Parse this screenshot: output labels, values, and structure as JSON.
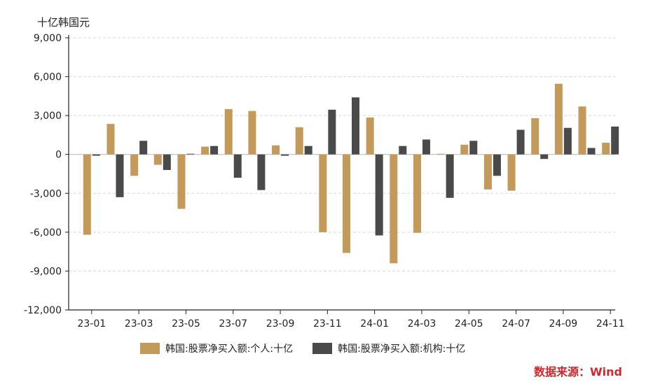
{
  "chart_data": {
    "type": "bar",
    "unit_label": "十亿韩国元",
    "categories": [
      "23-01",
      "23-02",
      "23-03",
      "23-04",
      "23-05",
      "23-06",
      "23-07",
      "23-08",
      "23-09",
      "23-10",
      "23-11",
      "23-12",
      "24-01",
      "24-02",
      "24-03",
      "24-04",
      "24-05",
      "24-06",
      "24-07",
      "24-08",
      "24-09",
      "24-10",
      "24-11"
    ],
    "x_tick_labels": [
      "23-01",
      "23-03",
      "23-05",
      "23-07",
      "23-09",
      "23-11",
      "24-01",
      "24-03",
      "24-05",
      "24-07",
      "24-09",
      "24-11"
    ],
    "series": [
      {
        "name": "韩国:股票净买入额:个人:十亿",
        "color": "#c49a5a",
        "values": [
          -6200,
          2350,
          -1650,
          -800,
          -4200,
          600,
          3500,
          3350,
          700,
          2100,
          -6000,
          -7600,
          2850,
          -8400,
          -6050,
          50,
          750,
          -2700,
          -2800,
          2800,
          5450,
          3700,
          900
        ]
      },
      {
        "name": "韩国:股票净买入额:机构:十亿",
        "color": "#4a4a4a",
        "values": [
          -100,
          -3300,
          1050,
          -1200,
          50,
          650,
          -1800,
          -2750,
          -100,
          650,
          3450,
          4400,
          -6250,
          650,
          1150,
          -3350,
          1050,
          -1650,
          1900,
          -350,
          2050,
          500,
          2150
        ]
      }
    ],
    "ylim": [
      -12000,
      9000
    ],
    "y_ticks": [
      9000,
      6000,
      3000,
      0,
      -3000,
      -6000,
      -9000,
      -12000
    ],
    "y_tick_labels": [
      "9,000",
      "6,000",
      "3,000",
      "0",
      "-3,000",
      "-6,000",
      "-9,000",
      "-12,000"
    ],
    "grid": "horizontal-dashed",
    "legend_position": "bottom"
  },
  "source": "数据来源：Wind"
}
